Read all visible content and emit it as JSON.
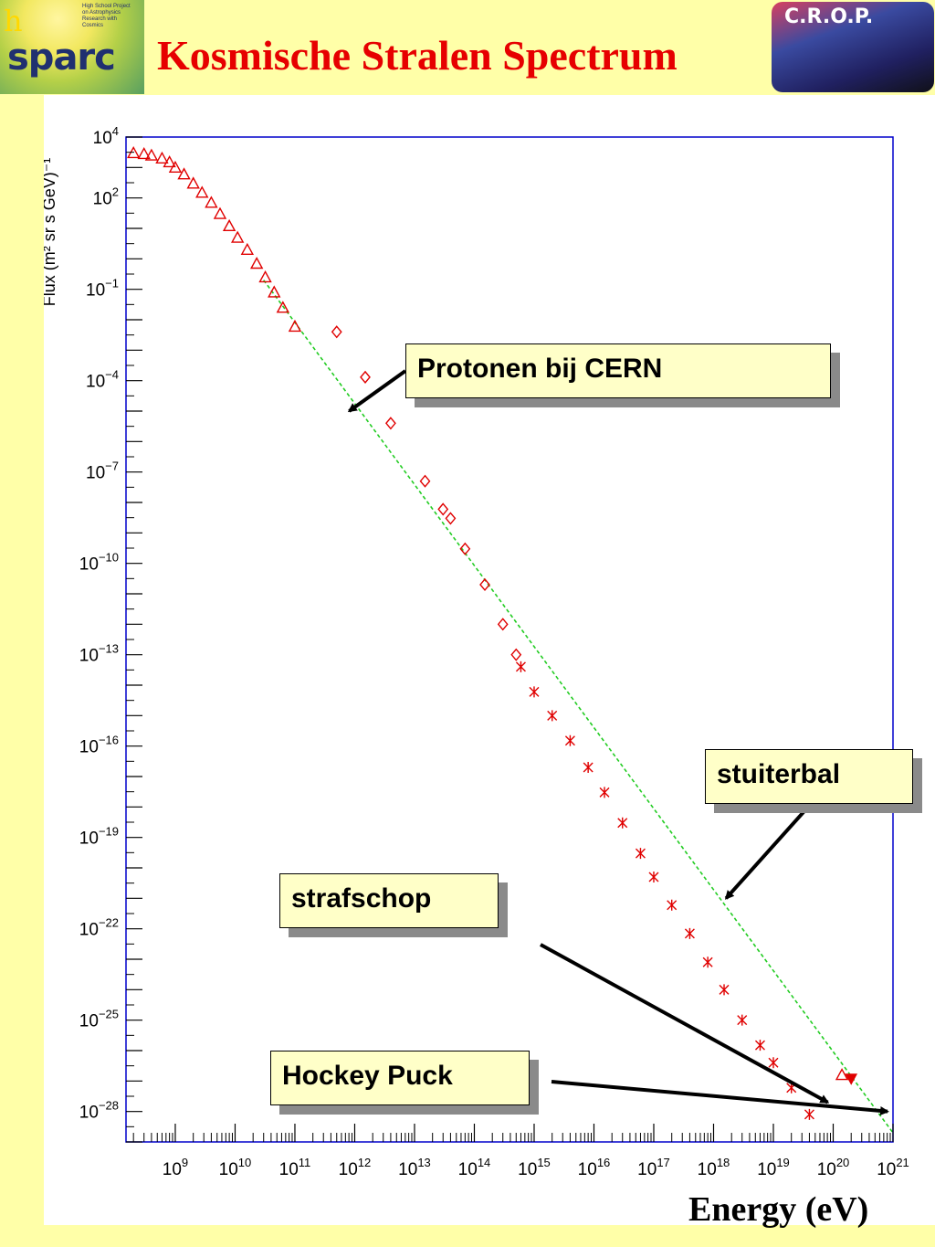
{
  "title": "Kosmische Stralen Spectrum",
  "logos": {
    "left_text": "sparc",
    "left_small": "High School Project on Astrophysics Research with Cosmics",
    "right_text": "C.R.O.P."
  },
  "annotations": [
    {
      "text": "Protonen bij CERN",
      "target": {
        "x": 1000000000000.0,
        "y": 1e-05
      }
    },
    {
      "text": "stuiterbal",
      "target": {
        "x": 2e+18,
        "y": 1e-21
      }
    },
    {
      "text": "strafschop",
      "target": {
        "x": 1e+20,
        "y": 2e-28
      }
    },
    {
      "text": "Hockey Puck",
      "target": {
        "x": 1e+21,
        "y": 1e-28
      }
    }
  ],
  "colors": {
    "data": "#e00000",
    "fit": "#22cc22",
    "axis": "#0000cc",
    "title": "#e60000",
    "background": "#ffffa8"
  },
  "chart_data": {
    "type": "scatter",
    "title": "Kosmische Stralen Spectrum",
    "xlabel": "Energy (eV)",
    "ylabel": "Flux (m² sr s GeV)⁻¹",
    "xscale": "log",
    "yscale": "log",
    "xlim": [
      150000000.0,
      1e+21
    ],
    "ylim": [
      1e-29,
      10000.0
    ],
    "x_ticks": [
      {
        "base": "10",
        "exp": "9",
        "value": 1000000000.0
      },
      {
        "base": "10",
        "exp": "10",
        "value": 10000000000.0
      },
      {
        "base": "10",
        "exp": "11",
        "value": 100000000000.0
      },
      {
        "base": "10",
        "exp": "12",
        "value": 1000000000000.0
      },
      {
        "base": "10",
        "exp": "13",
        "value": 10000000000000.0
      },
      {
        "base": "10",
        "exp": "14",
        "value": 100000000000000.0
      },
      {
        "base": "10",
        "exp": "15",
        "value": 1000000000000000.0
      },
      {
        "base": "10",
        "exp": "16",
        "value": 1e+16
      },
      {
        "base": "10",
        "exp": "17",
        "value": 1e+17
      },
      {
        "base": "10",
        "exp": "18",
        "value": 1e+18
      },
      {
        "base": "10",
        "exp": "19",
        "value": 1e+19
      },
      {
        "base": "10",
        "exp": "20",
        "value": 1e+20
      },
      {
        "base": "10",
        "exp": "21",
        "value": 1e+21
      }
    ],
    "y_ticks": [
      {
        "base": "10",
        "exp": "4",
        "value": 10000.0
      },
      {
        "base": "10",
        "exp": "2",
        "value": 100.0
      },
      {
        "base": "10",
        "exp": "−1",
        "value": 0.1
      },
      {
        "base": "10",
        "exp": "−4",
        "value": 0.0001
      },
      {
        "base": "10",
        "exp": "−7",
        "value": 1e-07
      },
      {
        "base": "10",
        "exp": "−10",
        "value": 1e-10
      },
      {
        "base": "10",
        "exp": "−13",
        "value": 1e-13
      },
      {
        "base": "10",
        "exp": "−16",
        "value": 1e-16
      },
      {
        "base": "10",
        "exp": "−19",
        "value": 1e-19
      },
      {
        "base": "10",
        "exp": "−22",
        "value": 1e-22
      },
      {
        "base": "10",
        "exp": "−25",
        "value": 1e-25
      },
      {
        "base": "10",
        "exp": "−28",
        "value": 1e-28
      }
    ],
    "grid": false,
    "fit_line": {
      "x": [
        30000000000.0,
        1e+21
      ],
      "y": [
        0.2,
        2e-29
      ]
    },
    "series": [
      {
        "marker": "triangle",
        "x": [
          200000000.0,
          300000000.0,
          400000000.0,
          600000000.0,
          800000000.0,
          1000000000.0,
          1400000000.0,
          2000000000.0,
          2800000000.0,
          4000000000.0,
          5600000000.0,
          8000000000.0,
          11000000000.0,
          16000000000.0,
          23000000000.0,
          32000000000.0,
          45000000000.0,
          63000000000.0,
          100000000000.0
        ],
        "y": [
          3000,
          2800,
          2500,
          2000,
          1500,
          1000,
          600,
          300,
          150,
          70,
          30,
          12,
          5,
          2,
          0.7,
          0.25,
          0.08,
          0.025,
          0.006
        ]
      },
      {
        "marker": "diamond",
        "x": [
          500000000000.0,
          1500000000000.0,
          4000000000000.0,
          15000000000000.0,
          30000000000000.0,
          40000000000000.0,
          70000000000000.0,
          150000000000000.0,
          300000000000000.0,
          500000000000000.0
        ],
        "y": [
          0.004,
          0.00013,
          4e-06,
          5e-08,
          6e-09,
          3e-09,
          3e-10,
          2e-11,
          1e-12,
          1e-13
        ]
      },
      {
        "marker": "star",
        "x": [
          600000000000000.0,
          1000000000000000.0,
          2000000000000000.0,
          4000000000000000.0,
          8000000000000000.0,
          1.5e+16,
          3e+16,
          6e+16,
          1e+17,
          2e+17,
          4e+17,
          8e+17,
          1.5e+18,
          3e+18,
          6e+18,
          1e+19,
          2e+19,
          4e+19
        ],
        "y": [
          4e-14,
          6e-15,
          1e-15,
          1.5e-16,
          2e-17,
          3e-18,
          3e-19,
          3e-20,
          5e-21,
          6e-22,
          7e-23,
          8e-24,
          1e-24,
          1e-25,
          1.5e-26,
          4e-27,
          6e-28,
          8e-29
        ]
      }
    ],
    "highest": [
      {
        "marker": "triangle-open",
        "x": 1.4e+20,
        "y": 1.6e-27
      },
      {
        "marker": "triangle-filled",
        "x": 2e+20,
        "y": 1.2e-27
      }
    ]
  }
}
